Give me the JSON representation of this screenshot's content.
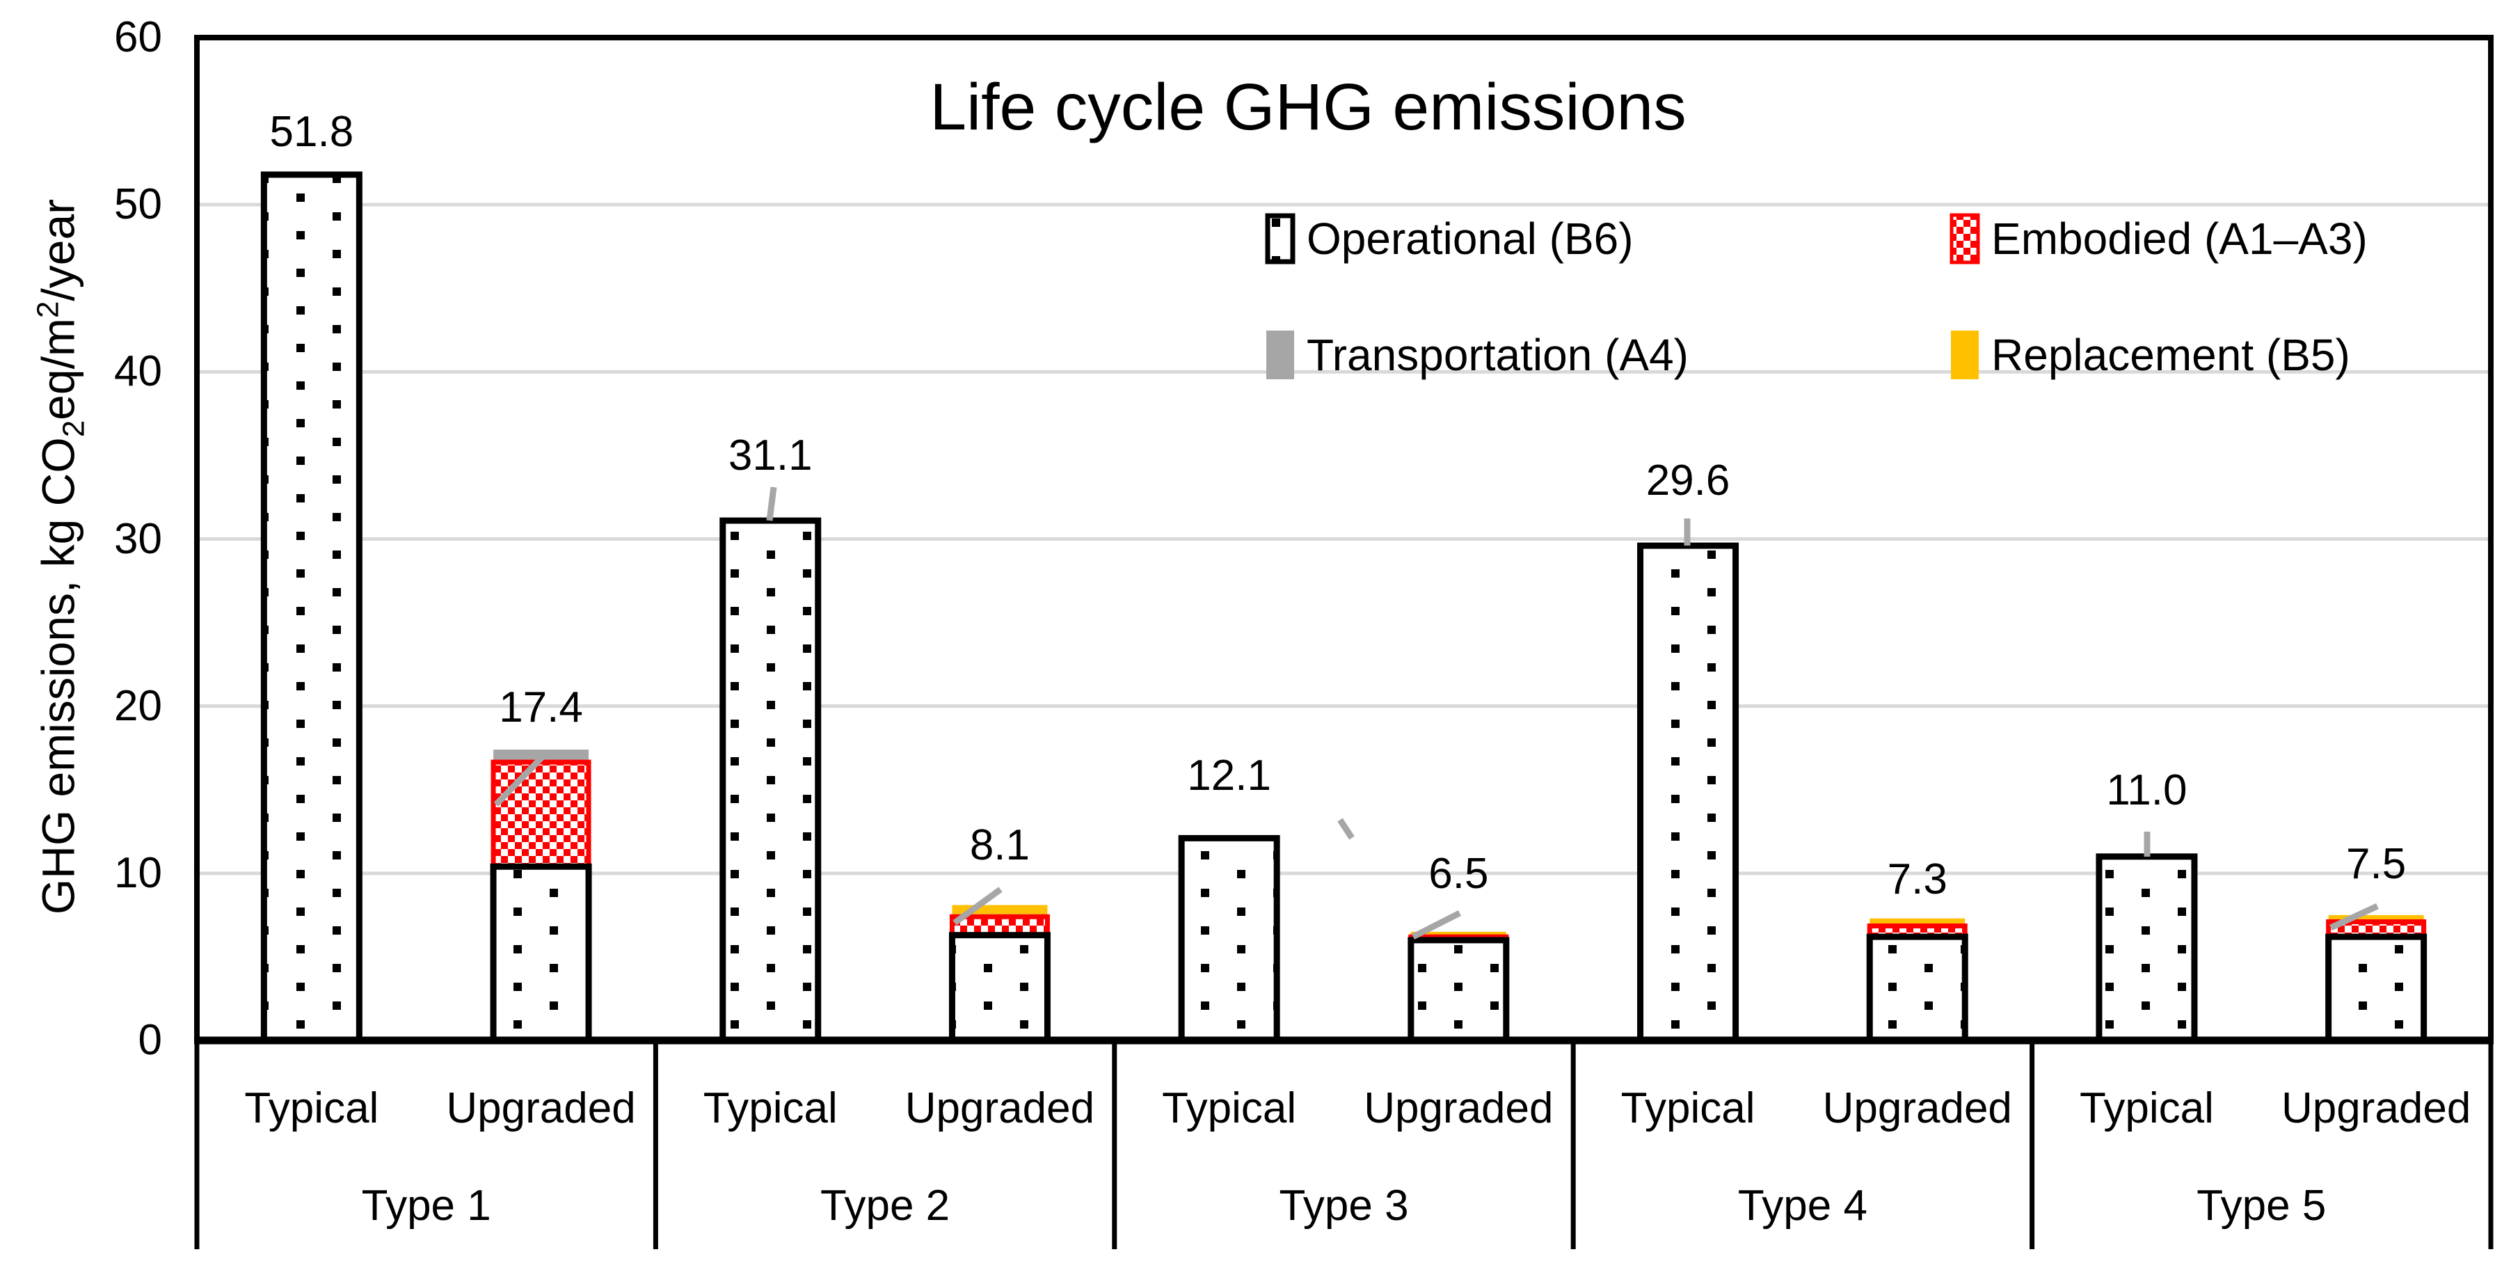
{
  "chart_data": {
    "type": "bar",
    "stacked": true,
    "title": "Life cycle GHG emissions",
    "ylabel": "GHG emissions, kg CO2eq/m2/year",
    "ylabel_parts": {
      "prefix": "GHG emissions, kg CO",
      "sub": "2",
      "mid": "eq/m",
      "sup": "2",
      "suffix": "/year"
    },
    "ylim": [
      0,
      60
    ],
    "ytick_step": 10,
    "yticks": [
      "0",
      "10",
      "20",
      "30",
      "40",
      "50",
      "60"
    ],
    "grid": true,
    "legend_position": "top-right, two rows inside plot",
    "groups": [
      "Type 1",
      "Type 2",
      "Type 3",
      "Type 4",
      "Type 5"
    ],
    "variants": [
      "Typical",
      "Upgraded"
    ],
    "series": [
      {
        "name": "Operational (B6)",
        "style": "black-dots-on-white",
        "color": "#000000",
        "values": [
          51.8,
          10.4,
          31.1,
          6.3,
          12.1,
          6.0,
          29.6,
          6.2,
          11.0,
          6.2
        ]
      },
      {
        "name": "Embodied (A1–A3)",
        "style": "red-white-checker",
        "color": "#FF0000",
        "values": [
          0,
          6.25,
          0,
          1.1,
          0,
          0.2,
          0,
          0.65,
          0,
          0.9
        ]
      },
      {
        "name": "Transportation (A4)",
        "style": "solid",
        "color": "#A6A6A6",
        "values": [
          0,
          0.75,
          0,
          0.15,
          0,
          0,
          0,
          0.05,
          0,
          0.1
        ]
      },
      {
        "name": "Replacement (B5)",
        "style": "solid",
        "color": "#FFC000",
        "values": [
          0,
          0,
          0,
          0.55,
          0,
          0.3,
          0,
          0.4,
          0,
          0.3
        ]
      }
    ],
    "bars": [
      {
        "group": "Type 1",
        "variant": "Typical",
        "total": 51.8,
        "label": "51.8",
        "segments": {
          "operational": 51.8,
          "embodied": 0,
          "transportation": 0,
          "replacement": 0
        }
      },
      {
        "group": "Type 1",
        "variant": "Upgraded",
        "total": 17.4,
        "label": "17.4",
        "segments": {
          "operational": 10.4,
          "embodied": 6.25,
          "transportation": 0.75,
          "replacement": 0
        }
      },
      {
        "group": "Type 2",
        "variant": "Typical",
        "total": 31.1,
        "label": "31.1",
        "segments": {
          "operational": 31.1,
          "embodied": 0,
          "transportation": 0,
          "replacement": 0
        }
      },
      {
        "group": "Type 2",
        "variant": "Upgraded",
        "total": 8.1,
        "label": "8.1",
        "segments": {
          "operational": 6.3,
          "embodied": 1.1,
          "transportation": 0.15,
          "replacement": 0.55
        }
      },
      {
        "group": "Type 3",
        "variant": "Typical",
        "total": 12.1,
        "label": "12.1",
        "segments": {
          "operational": 12.1,
          "embodied": 0,
          "transportation": 0,
          "replacement": 0
        }
      },
      {
        "group": "Type 3",
        "variant": "Upgraded",
        "total": 6.5,
        "label": "6.5",
        "segments": {
          "operational": 6.0,
          "embodied": 0.2,
          "transportation": 0,
          "replacement": 0.3
        }
      },
      {
        "group": "Type 4",
        "variant": "Typical",
        "total": 29.6,
        "label": "29.6",
        "segments": {
          "operational": 29.6,
          "embodied": 0,
          "transportation": 0,
          "replacement": 0
        }
      },
      {
        "group": "Type 4",
        "variant": "Upgraded",
        "total": 7.3,
        "label": "7.3",
        "segments": {
          "operational": 6.2,
          "embodied": 0.65,
          "transportation": 0.05,
          "replacement": 0.4
        }
      },
      {
        "group": "Type 5",
        "variant": "Typical",
        "total": 11.0,
        "label": "11.0",
        "segments": {
          "operational": 11.0,
          "embodied": 0,
          "transportation": 0,
          "replacement": 0
        }
      },
      {
        "group": "Type 5",
        "variant": "Upgraded",
        "total": 7.5,
        "label": "7.5",
        "segments": {
          "operational": 6.2,
          "embodied": 0.9,
          "transportation": 0.1,
          "replacement": 0.3
        }
      }
    ],
    "colors": {
      "embodied": "#FF0000",
      "transportation": "#A6A6A6",
      "replacement": "#FFC000",
      "operational_dots": "#000000",
      "gridline": "#D9D9D9",
      "axis": "#000000",
      "leader_line": "#A6A6A6",
      "background": "#FFFFFF"
    }
  }
}
